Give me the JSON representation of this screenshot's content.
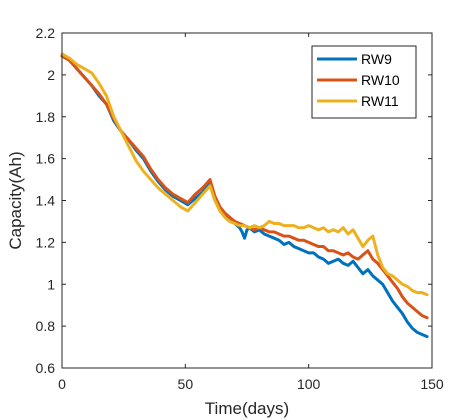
{
  "chart_data": {
    "type": "line",
    "xlabel": "Time(days)",
    "ylabel": "Capacity(Ah)",
    "xlim": [
      0,
      150
    ],
    "ylim": [
      0.6,
      2.2
    ],
    "xticks": [
      0,
      50,
      100,
      150
    ],
    "yticks": [
      0.6,
      0.8,
      1.0,
      1.2,
      1.4,
      1.6,
      1.8,
      2.0,
      2.2
    ],
    "xtick_labels": [
      "0",
      "50",
      "100",
      "150"
    ],
    "ytick_labels": [
      "0.6",
      "0.8",
      "1",
      "1.2",
      "1.4",
      "1.6",
      "1.8",
      "2",
      "2.2"
    ],
    "grid": false,
    "box": true,
    "legend_position": "top-right",
    "series": [
      {
        "name": "RW9",
        "color": "#0072BD",
        "x": [
          0,
          3,
          6,
          9,
          12,
          15,
          18,
          21,
          24,
          27,
          30,
          33,
          36,
          39,
          42,
          45,
          48,
          51,
          54,
          57,
          60,
          62,
          64,
          66,
          68,
          70,
          72,
          73,
          74,
          75,
          76,
          78,
          80,
          82,
          84,
          86,
          88,
          90,
          92,
          94,
          96,
          98,
          100,
          102,
          104,
          106,
          108,
          110,
          112,
          114,
          116,
          118,
          120,
          122,
          124,
          126,
          128,
          130,
          132,
          134,
          136,
          138,
          140,
          142,
          144,
          146,
          148
        ],
        "y": [
          2.09,
          2.07,
          2.03,
          1.99,
          1.95,
          1.9,
          1.86,
          1.78,
          1.73,
          1.69,
          1.64,
          1.6,
          1.54,
          1.49,
          1.45,
          1.42,
          1.4,
          1.38,
          1.41,
          1.44,
          1.48,
          1.4,
          1.36,
          1.33,
          1.31,
          1.29,
          1.27,
          1.25,
          1.22,
          1.26,
          1.27,
          1.25,
          1.26,
          1.24,
          1.23,
          1.22,
          1.21,
          1.19,
          1.2,
          1.18,
          1.17,
          1.16,
          1.15,
          1.15,
          1.13,
          1.12,
          1.1,
          1.11,
          1.12,
          1.1,
          1.09,
          1.11,
          1.08,
          1.05,
          1.07,
          1.04,
          1.02,
          1.0,
          0.96,
          0.92,
          0.89,
          0.86,
          0.82,
          0.79,
          0.77,
          0.76,
          0.75
        ]
      },
      {
        "name": "RW10",
        "color": "#D95319",
        "x": [
          0,
          3,
          6,
          9,
          12,
          15,
          18,
          21,
          24,
          27,
          30,
          33,
          36,
          39,
          42,
          45,
          48,
          51,
          54,
          57,
          60,
          62,
          64,
          66,
          68,
          70,
          72,
          74,
          76,
          78,
          80,
          82,
          84,
          86,
          88,
          90,
          92,
          94,
          96,
          98,
          100,
          102,
          104,
          106,
          108,
          110,
          112,
          114,
          116,
          118,
          120,
          122,
          124,
          126,
          128,
          130,
          132,
          134,
          136,
          138,
          140,
          142,
          144,
          146,
          148
        ],
        "y": [
          2.09,
          2.07,
          2.03,
          1.99,
          1.95,
          1.91,
          1.86,
          1.79,
          1.73,
          1.69,
          1.65,
          1.61,
          1.55,
          1.5,
          1.46,
          1.43,
          1.41,
          1.39,
          1.43,
          1.46,
          1.5,
          1.42,
          1.37,
          1.34,
          1.32,
          1.3,
          1.29,
          1.28,
          1.27,
          1.26,
          1.27,
          1.26,
          1.25,
          1.25,
          1.24,
          1.23,
          1.23,
          1.22,
          1.21,
          1.21,
          1.2,
          1.19,
          1.18,
          1.18,
          1.16,
          1.16,
          1.15,
          1.14,
          1.15,
          1.13,
          1.12,
          1.14,
          1.16,
          1.12,
          1.1,
          1.07,
          1.04,
          1.01,
          0.98,
          0.94,
          0.91,
          0.89,
          0.87,
          0.85,
          0.84
        ]
      },
      {
        "name": "RW11",
        "color": "#EDB120",
        "x": [
          0,
          3,
          6,
          9,
          12,
          15,
          18,
          21,
          24,
          27,
          30,
          33,
          36,
          39,
          42,
          45,
          48,
          51,
          54,
          57,
          60,
          62,
          64,
          66,
          68,
          70,
          72,
          74,
          76,
          78,
          80,
          82,
          84,
          86,
          88,
          90,
          92,
          94,
          96,
          98,
          100,
          102,
          104,
          106,
          108,
          110,
          112,
          114,
          116,
          118,
          120,
          122,
          124,
          126,
          128,
          130,
          132,
          134,
          136,
          138,
          140,
          142,
          144,
          146,
          148
        ],
        "y": [
          2.1,
          2.08,
          2.05,
          2.03,
          2.01,
          1.96,
          1.9,
          1.8,
          1.73,
          1.66,
          1.59,
          1.54,
          1.5,
          1.46,
          1.43,
          1.4,
          1.37,
          1.35,
          1.39,
          1.43,
          1.47,
          1.4,
          1.35,
          1.32,
          1.3,
          1.29,
          1.28,
          1.28,
          1.27,
          1.28,
          1.27,
          1.28,
          1.3,
          1.29,
          1.29,
          1.28,
          1.28,
          1.28,
          1.27,
          1.27,
          1.28,
          1.27,
          1.26,
          1.27,
          1.25,
          1.26,
          1.25,
          1.27,
          1.24,
          1.26,
          1.22,
          1.18,
          1.21,
          1.23,
          1.14,
          1.08,
          1.05,
          1.04,
          1.02,
          1.0,
          0.99,
          0.97,
          0.96,
          0.96,
          0.95
        ]
      }
    ]
  }
}
